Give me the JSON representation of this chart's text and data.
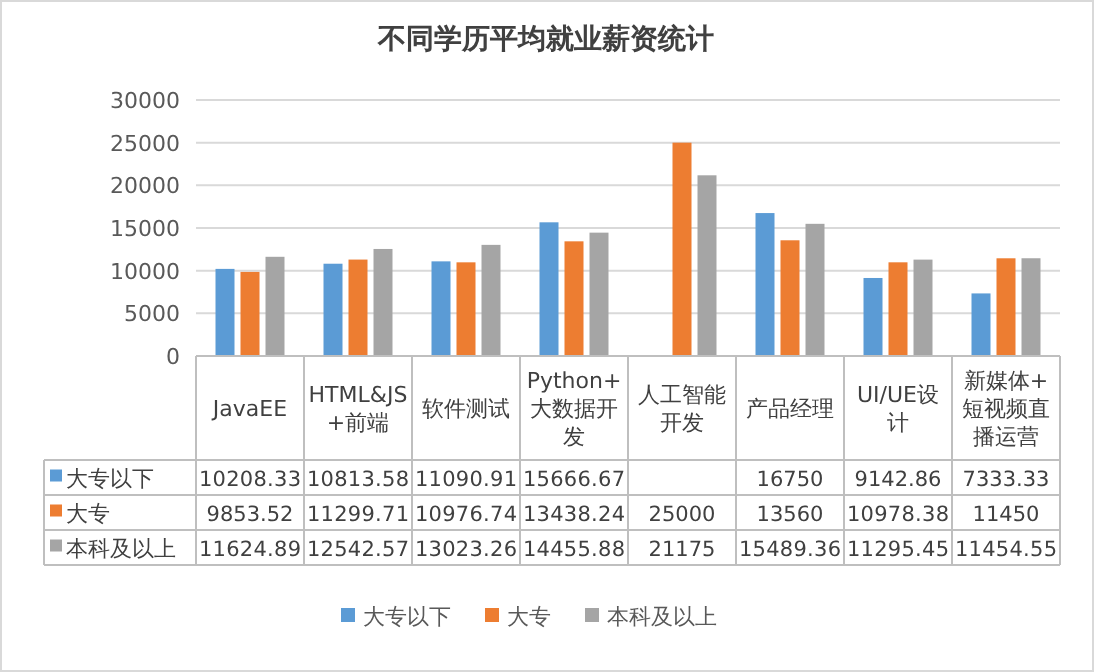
{
  "chart_data": {
    "type": "bar",
    "title": "不同学历平均就业薪资统计",
    "categories": [
      "JavaEE",
      "HTML&JS+前端",
      "软件测试",
      "Python+大数据开发",
      "人工智能开发",
      "产品经理",
      "UI/UE设计",
      "新媒体+短视频直播运营"
    ],
    "series": [
      {
        "name": "大专以下",
        "color": "#5b9bd5",
        "values": [
          10208.33,
          10813.58,
          11090.91,
          15666.67,
          null,
          16750,
          9142.86,
          7333.33
        ]
      },
      {
        "name": "大专",
        "color": "#ed7d31",
        "values": [
          9853.52,
          11299.71,
          10976.74,
          13438.24,
          25000,
          13560,
          10978.38,
          11450
        ]
      },
      {
        "name": "本科及以上",
        "color": "#a5a5a5",
        "values": [
          11624.89,
          12542.57,
          13023.26,
          14455.88,
          21175,
          15489.36,
          11295.45,
          11454.55
        ]
      }
    ],
    "ylim": [
      0,
      30000
    ],
    "yticks": [
      0,
      5000,
      10000,
      15000,
      20000,
      25000,
      30000
    ],
    "grid": "y",
    "legend": "bottom",
    "data_labels": true
  }
}
